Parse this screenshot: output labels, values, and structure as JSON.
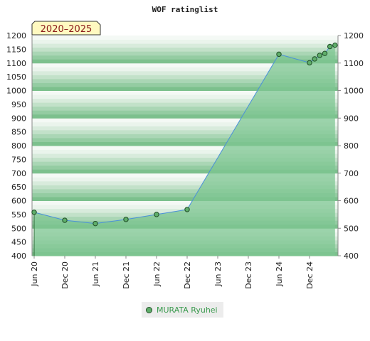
{
  "chart_data": {
    "type": "area",
    "title": "WOF ratinglist",
    "badge": "2020–2025",
    "ylim": [
      400,
      1200
    ],
    "yticks": [
      400,
      450,
      500,
      550,
      600,
      650,
      700,
      750,
      800,
      850,
      900,
      950,
      1000,
      1050,
      1100,
      1150,
      1200
    ],
    "yticks_right": [
      400,
      500,
      600,
      700,
      800,
      900,
      1000,
      1100,
      1200
    ],
    "xticks": [
      "Jun 20",
      "Dec 20",
      "Jun 21",
      "Dec 21",
      "Jun 22",
      "Dec 22",
      "Jun 23",
      "Dec 23",
      "Jun 24",
      "Dec 24"
    ],
    "x": [
      "Jun 20",
      "Dec 20",
      "Jun 21",
      "Dec 21",
      "Jun 22",
      "Dec 22",
      "Jun 24",
      "Dec 24",
      "Jan 25",
      "Feb 25",
      "Mar 25",
      "Apr 25",
      "May 25"
    ],
    "series": [
      {
        "name": "MURATA Ryuhei",
        "values": [
          558,
          529,
          517,
          532,
          550,
          568,
          1132,
          1101,
          1115,
          1128,
          1135,
          1160,
          1165
        ],
        "color": "#5fae6a",
        "line_color": "#4a90d9"
      }
    ],
    "legend_position": "bottom-center",
    "grid": false,
    "colors": {
      "band_dark": "#7cc08d",
      "band_light": "#f4f9f5",
      "area": "#7ec592"
    }
  }
}
